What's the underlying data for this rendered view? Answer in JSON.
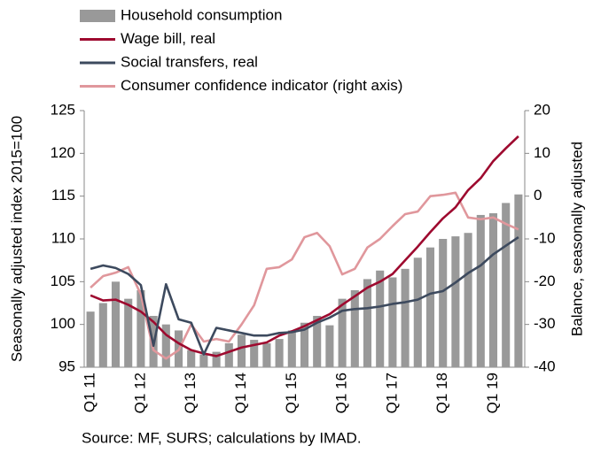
{
  "chart_data": {
    "type": "bar",
    "y_label": "Seasonally adjusted index 2015=100",
    "y2_label": "Balance, seasonally adjusted",
    "note": "Source: MF, SURS; calculations by IMAD.",
    "categories": [
      "Q1 11",
      null,
      null,
      null,
      "Q1 12",
      null,
      null,
      null,
      "Q1 13",
      null,
      null,
      null,
      "Q1 14",
      null,
      null,
      null,
      "Q1 15",
      null,
      null,
      null,
      "Q1 16",
      null,
      null,
      null,
      "Q1 17",
      null,
      null,
      null,
      "Q1 18",
      null,
      null,
      null,
      "Q1 19",
      null,
      null
    ],
    "ylim": [
      95,
      125
    ],
    "yticks": [
      95,
      100,
      105,
      110,
      115,
      120,
      125
    ],
    "y2lim": [
      -40,
      20
    ],
    "y2ticks": [
      -40,
      -30,
      -20,
      -10,
      0,
      10,
      20
    ],
    "series": [
      {
        "name": "Household consumption",
        "type": "bar",
        "color": "#999999",
        "values": [
          101.5,
          102.5,
          105,
          103,
          104,
          101,
          100,
          99.3,
          97,
          96.5,
          96.8,
          97.8,
          98.8,
          98.2,
          97.8,
          98.3,
          99.3,
          100.2,
          101,
          99.9,
          103,
          104,
          105.3,
          106.3,
          105.5,
          106.5,
          107.8,
          109,
          110,
          110.3,
          110.7,
          112.8,
          113,
          114.2,
          115.2
        ]
      },
      {
        "name": "Wage bill, real",
        "type": "line",
        "color": "#9e0a2f",
        "values": [
          103.4,
          102.8,
          102.9,
          102.3,
          101.5,
          100.3,
          98.8,
          97.8,
          97.0,
          96.6,
          96.3,
          96.8,
          97.3,
          97.6,
          97.9,
          98.7,
          99.2,
          99.8,
          100.5,
          101.2,
          102.3,
          103.3,
          104.3,
          105.0,
          105.9,
          107.5,
          109.1,
          110.8,
          112.4,
          113.7,
          115.7,
          117.1,
          119.1,
          120.6,
          122.0
        ]
      },
      {
        "name": "Social transfers, real",
        "type": "line",
        "color": "#3d4a5e",
        "values": [
          106.5,
          106.9,
          106.6,
          105.9,
          104.6,
          97.5,
          104.7,
          100.6,
          100.2,
          96.5,
          99.6,
          99.3,
          99.0,
          98.7,
          98.7,
          99.0,
          99.1,
          99.4,
          100.2,
          100.8,
          101.6,
          101.8,
          101.9,
          102.1,
          102.4,
          102.6,
          102.9,
          103.6,
          103.9,
          104.9,
          106.0,
          106.9,
          108.2,
          109.2,
          110.2
        ]
      },
      {
        "name": "Consumer confidence indicator (right axis)",
        "type": "line",
        "axis": "y2",
        "color": "#e0979c",
        "values": [
          -21.4,
          -18.7,
          -17.9,
          -16.6,
          -23,
          -36,
          -38,
          -36,
          -30,
          -34,
          -33.4,
          -34,
          -30,
          -25.5,
          -17,
          -16.6,
          -14.8,
          -9.6,
          -8.6,
          -11.7,
          -18.3,
          -17,
          -12,
          -10,
          -7,
          -4.2,
          -3.6,
          0,
          0.3,
          0.8,
          -5,
          -5.4,
          -5,
          -6.5,
          -7.8
        ]
      }
    ]
  }
}
